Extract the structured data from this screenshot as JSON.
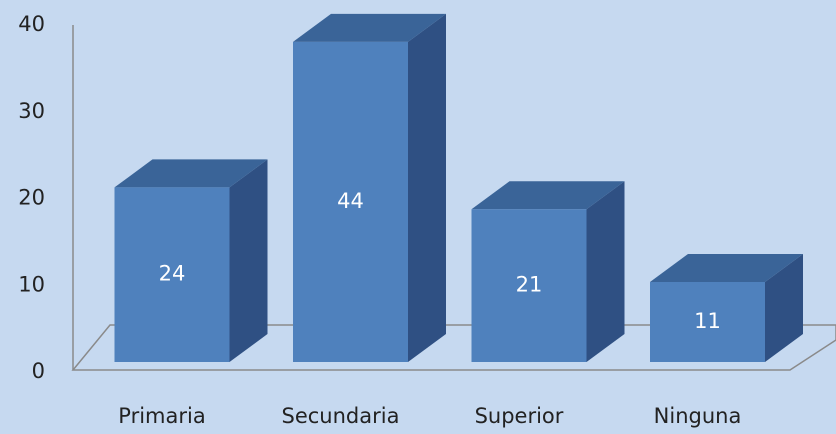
{
  "chart_data": {
    "type": "bar3d",
    "categories": [
      "Primaria",
      "Secundaria",
      "Superior",
      "Ninguna"
    ],
    "values": [
      24,
      44,
      21,
      11
    ],
    "color": "#4f81bd",
    "ylim": [
      0,
      40
    ],
    "yticks": [
      0,
      10,
      20,
      30,
      40
    ],
    "grid": false
  }
}
